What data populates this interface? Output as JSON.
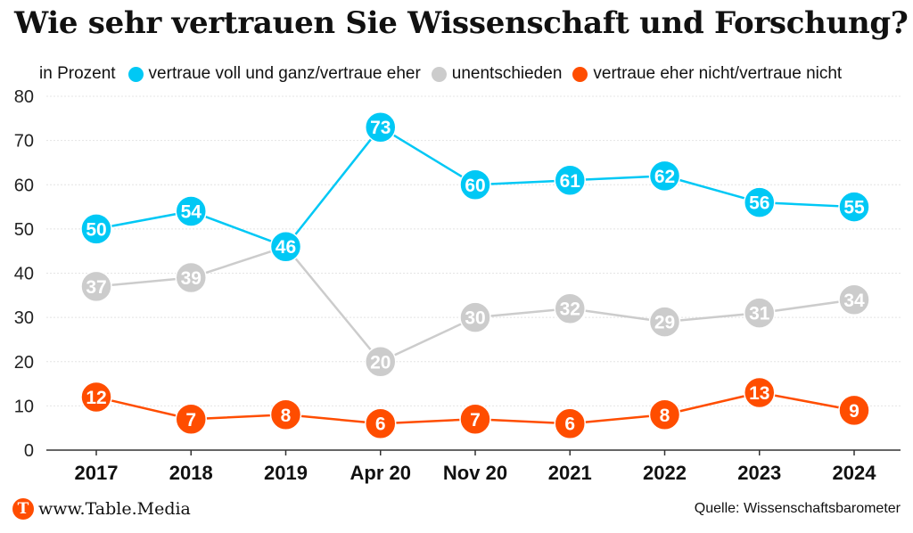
{
  "header": {
    "title": "Wie sehr vertrauen Sie Wissenschaft und Forschung?"
  },
  "legend": {
    "unit_label": "in Prozent",
    "items": [
      {
        "label": "vertraue voll und ganz/vertraue eher",
        "color": "#00c8f5"
      },
      {
        "label": "unentschieden",
        "color": "#cccccc"
      },
      {
        "label": "vertraue eher nicht/vertraue nicht",
        "color": "#ff4d00"
      }
    ]
  },
  "footer": {
    "logo_letter": "T",
    "website": "www.Table.Media",
    "source": "Quelle: Wissenschaftsbarometer"
  },
  "chart_data": {
    "type": "line",
    "title": "Wie sehr vertrauen Sie Wissenschaft und Forschung?",
    "xlabel": "",
    "ylabel": "in Prozent",
    "ylim": [
      0,
      80
    ],
    "yticks": [
      0,
      10,
      20,
      30,
      40,
      50,
      60,
      70,
      80
    ],
    "grid": true,
    "legend_position": "top",
    "categories": [
      "2017",
      "2018",
      "2019",
      "Apr 20",
      "Nov 20",
      "2021",
      "2022",
      "2023",
      "2024"
    ],
    "series": [
      {
        "name": "unentschieden",
        "color": "#cccccc",
        "values": [
          37,
          39,
          46,
          20,
          30,
          32,
          29,
          31,
          34
        ]
      },
      {
        "name": "vertraue eher nicht/vertraue nicht",
        "color": "#ff4d00",
        "values": [
          12,
          7,
          8,
          6,
          7,
          6,
          8,
          13,
          9
        ]
      },
      {
        "name": "vertraue voll und ganz/vertraue eher",
        "color": "#00c8f5",
        "values": [
          50,
          54,
          46,
          73,
          60,
          61,
          62,
          56,
          55
        ]
      }
    ]
  }
}
